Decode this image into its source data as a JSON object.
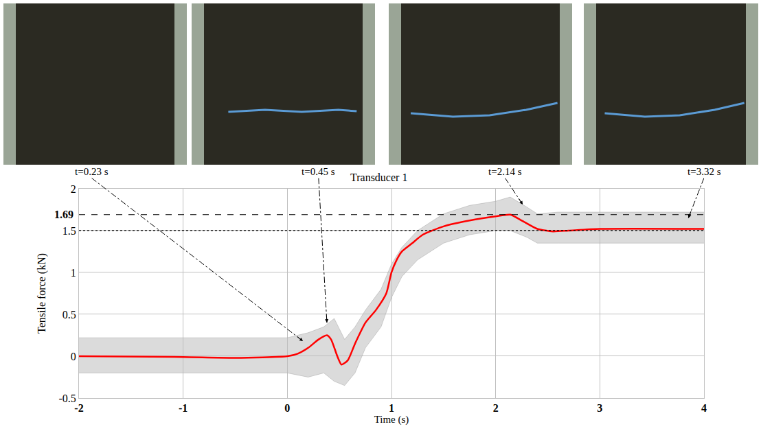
{
  "chart_data": {
    "type": "line",
    "title": "Transducer 1",
    "x_label": "Time (s)",
    "y_label": "Tensile force (kN)",
    "xlim": [
      -2,
      4
    ],
    "xticks": [
      -2,
      -1,
      0,
      1,
      2,
      3,
      4
    ],
    "ylim": [
      -0.5,
      2
    ],
    "yticks": [
      -0.5,
      0,
      0.5,
      1,
      1.5,
      2
    ],
    "grid": true,
    "series": [
      {
        "type": "band",
        "color": "#a6a6a6",
        "x": [
          -2,
          -1,
          0,
          0.2,
          0.35,
          0.45,
          0.55,
          0.65,
          0.75,
          0.9,
          1.0,
          1.1,
          1.25,
          1.5,
          1.75,
          2.0,
          2.14,
          2.3,
          2.4,
          2.6,
          3.0,
          3.5,
          4.0
        ],
        "low": [
          -0.2,
          -0.2,
          -0.2,
          -0.25,
          -0.2,
          -0.3,
          -0.35,
          -0.2,
          0.1,
          0.35,
          0.7,
          0.95,
          1.15,
          1.35,
          1.45,
          1.5,
          1.5,
          1.42,
          1.35,
          1.35,
          1.35,
          1.35,
          1.35
        ],
        "high": [
          0.22,
          0.22,
          0.22,
          0.28,
          0.35,
          0.45,
          0.2,
          0.35,
          0.55,
          0.8,
          1.1,
          1.3,
          1.5,
          1.7,
          1.8,
          1.85,
          1.9,
          1.78,
          1.7,
          1.72,
          1.72,
          1.72,
          1.72
        ]
      },
      {
        "type": "line",
        "color": "#ff0000",
        "x": [
          -2,
          -1,
          -0.5,
          0,
          0.1,
          0.2,
          0.3,
          0.38,
          0.42,
          0.48,
          0.52,
          0.58,
          0.65,
          0.75,
          0.85,
          0.95,
          1.0,
          1.05,
          1.1,
          1.2,
          1.3,
          1.5,
          1.75,
          2.0,
          2.14,
          2.25,
          2.4,
          2.55,
          2.7,
          3.0,
          4.0
        ],
        "values": [
          0,
          -0.01,
          -0.02,
          0,
          0.03,
          0.1,
          0.2,
          0.25,
          0.2,
          0.0,
          -0.1,
          -0.05,
          0.15,
          0.4,
          0.55,
          0.75,
          1.0,
          1.15,
          1.25,
          1.35,
          1.45,
          1.55,
          1.62,
          1.67,
          1.69,
          1.62,
          1.52,
          1.49,
          1.5,
          1.52,
          1.52
        ]
      }
    ],
    "reference_lines": [
      {
        "value": 1.69,
        "label": "1.69",
        "line_style": "dash"
      },
      {
        "value": 1.5,
        "line_style": "dot"
      }
    ],
    "annotations": [
      {
        "text": "t=0.23 s",
        "x": 0.15,
        "y": 0.18
      },
      {
        "text": "t=0.45 s",
        "x": 0.38,
        "y": 0.4
      },
      {
        "text": "t=2.14 s",
        "x": 2.26,
        "y": 1.81
      },
      {
        "text": "t=3.32 s",
        "x": 3.85,
        "y": 1.65
      }
    ]
  }
}
